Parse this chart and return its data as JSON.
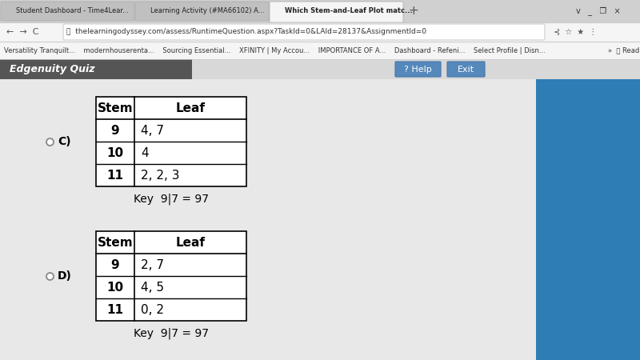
{
  "bg_color": "#e8e8e8",
  "page_bg": "#ffffff",
  "content_bg": "#f0f0f0",
  "header_bar_color": "#3a8fc0",
  "sidebar_color": "#2e7db5",
  "option_c_label": "C)",
  "option_d_label": "D)",
  "table_c": {
    "headers": [
      "Stem",
      "Leaf"
    ],
    "rows": [
      [
        "9",
        "4, 7"
      ],
      [
        "10",
        "4"
      ],
      [
        "11",
        "2, 2, 3"
      ]
    ],
    "key": "Key  9|7 = 97"
  },
  "table_d": {
    "headers": [
      "Stem",
      "Leaf"
    ],
    "rows": [
      [
        "9",
        "2, 7"
      ],
      [
        "10",
        "4, 5"
      ],
      [
        "11",
        "0, 2"
      ]
    ],
    "key": "Key  9|7 = 97"
  },
  "radio_color": "#555555",
  "text_color": "#000000",
  "header_font_size": 11,
  "cell_font_size": 11,
  "key_font_size": 10,
  "label_font_size": 10,
  "browser_tab_bg": "#d0d0d0",
  "browser_active_tab_bg": "#f5f5f5",
  "browser_toolbar_bg": "#f5f5f5",
  "browser_bookmarks_bg": "#f5f5f5",
  "edgenuity_bar_bg": "#555555",
  "edgenuity_bar_text": "#ffffff",
  "url_text": "thelearningodyssey.com/assess/RuntimeQuestion.aspx?TaskId=0&LAId=28137&AssignmentId=0",
  "tab1_text": "Student Dashboard - Time4Lear...",
  "tab2_text": "Learning Activity (#MA66102) A...",
  "tab3_text": "Which Stem-and-Leaf Plot matc...",
  "bookmarks_text": "Versatility Tranquilt...    modernhouserenta...    Sourcing Essential...    XFINITY | My Accou...    IMPORTANCE OF A...    Dashboard - Refeni...    Select Profile | Disn...",
  "help_text": "? Help",
  "exit_text": "Exit"
}
